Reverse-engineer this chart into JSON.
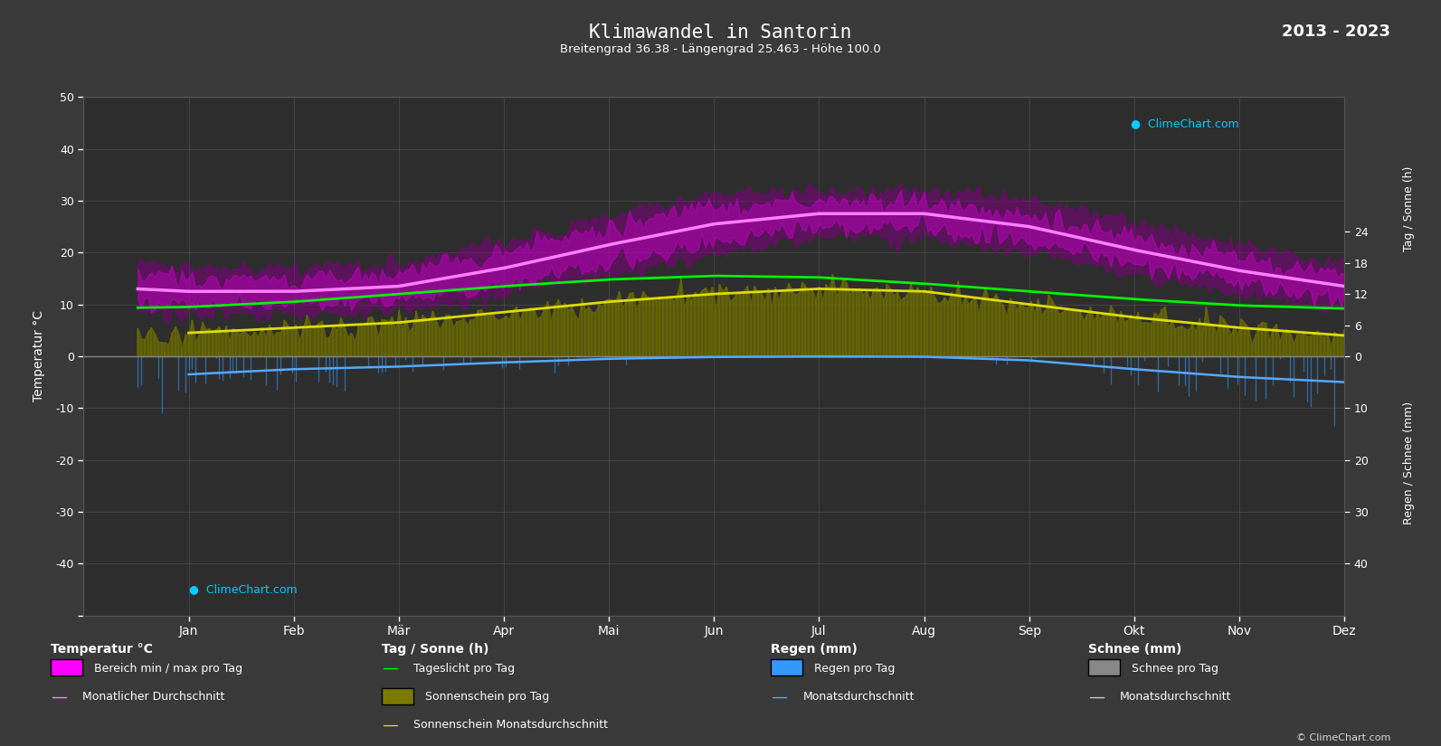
{
  "title": "Klimawandel in Santorin",
  "subtitle": "Breitengrad 36.38 - Längengrad 25.463 - Höhe 100.0",
  "year_range": "2013 - 2023",
  "months": [
    "Jan",
    "Feb",
    "Mär",
    "Apr",
    "Mai",
    "Jun",
    "Jul",
    "Aug",
    "Sep",
    "Okt",
    "Nov",
    "Dez"
  ],
  "bg_color": "#3a3a3a",
  "plot_bg_color": "#2e2e2e",
  "grid_color": "#555555",
  "text_color": "#ffffff",
  "temp_ylim": [
    -50,
    50
  ],
  "temp_min_daily": [
    10,
    10,
    11,
    14,
    18,
    22,
    25,
    25,
    22,
    18,
    14,
    11
  ],
  "temp_max_daily": [
    15,
    15,
    16,
    20,
    25,
    29,
    30,
    30,
    27,
    23,
    19,
    16
  ],
  "temp_min_spread": [
    8,
    8,
    9,
    12,
    16,
    20,
    23,
    23,
    20,
    16,
    12,
    9
  ],
  "temp_max_spread": [
    17,
    17,
    18,
    22,
    27,
    31,
    32,
    32,
    30,
    26,
    21,
    18
  ],
  "temp_monthly_avg": [
    12.5,
    12.5,
    13.5,
    17,
    21.5,
    25.5,
    27.5,
    27.5,
    25,
    20.5,
    16.5,
    13.5
  ],
  "daylight_hours": [
    9.5,
    10.5,
    12.0,
    13.5,
    14.8,
    15.5,
    15.2,
    14.0,
    12.5,
    11.0,
    9.8,
    9.2
  ],
  "sunshine_daily_avg": [
    4.5,
    5.5,
    6.5,
    8.5,
    10.5,
    12.0,
    13.0,
    12.5,
    10.0,
    7.5,
    5.5,
    4.0
  ],
  "rain_daily_vals": [
    5,
    4,
    3,
    2,
    1,
    0.3,
    0.1,
    0.2,
    1.5,
    4,
    6,
    7
  ],
  "rain_monthly_avg": [
    3.5,
    2.5,
    2.0,
    1.2,
    0.5,
    0.15,
    0.05,
    0.1,
    0.8,
    2.5,
    4.0,
    5.0
  ],
  "snow_daily_vals": [
    0.3,
    0.2,
    0.05,
    0,
    0,
    0,
    0,
    0,
    0,
    0,
    0.05,
    0.2
  ],
  "snow_monthly_avg": [
    0.1,
    0.08,
    0.02,
    0,
    0,
    0,
    0,
    0,
    0,
    0,
    0.02,
    0.08
  ],
  "color_temp_outer": "#cc00cc",
  "color_temp_inner": "#ff00ff",
  "color_temp_line": "#ff80ff",
  "color_daylight": "#00ff00",
  "color_sunshine_fill": "#7a7a00",
  "color_sunshine_line": "#dddd00",
  "color_rain": "#3399ff",
  "color_rain_avg": "#55aaff",
  "color_snow": "#aaaaaa",
  "color_snow_avg": "#cccccc"
}
